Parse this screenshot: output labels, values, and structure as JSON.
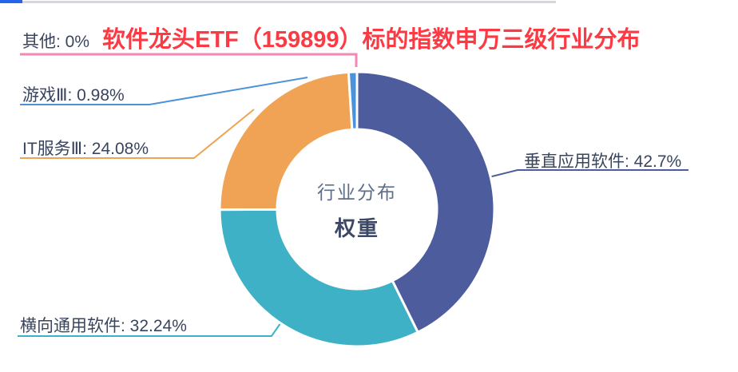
{
  "top_bar": {
    "accent_color": "#2463EB",
    "line_color": "#D7D7E3"
  },
  "title": {
    "text": "软件龙头ETF（159899）标的指数申万三级行业分布",
    "color": "#FB3A43"
  },
  "center": {
    "line1": "行业分布",
    "line2": "权重",
    "line1_color": "#5E6E88",
    "line2_color": "#3D4766"
  },
  "label_text_color": "#39455E",
  "chart_data": {
    "type": "pie",
    "donut": true,
    "title": "软件龙头ETF（159899）标的指数申万三级行业分布",
    "center_label_top": "行业分布",
    "center_label_bottom": "权重",
    "legend_position": "none",
    "start_angle_deg": 0,
    "direction": "clockwise",
    "slices": [
      {
        "label": "垂直应用软件",
        "value": 42.7,
        "display": "垂直应用软件: 42.7%",
        "color": "#4D5C9D"
      },
      {
        "label": "横向通用软件",
        "value": 32.24,
        "display": "横向通用软件: 32.24%",
        "color": "#3FB1C7"
      },
      {
        "label": "IT服务Ⅲ",
        "value": 24.08,
        "display": "IT服务Ⅲ: 24.08%",
        "color": "#F0A355"
      },
      {
        "label": "游戏Ⅲ",
        "value": 0.98,
        "display": "游戏Ⅲ: 0.98%",
        "color": "#4C92D9"
      },
      {
        "label": "其他",
        "value": 0,
        "display": "其他: 0%",
        "color": "#F687B5"
      }
    ]
  }
}
